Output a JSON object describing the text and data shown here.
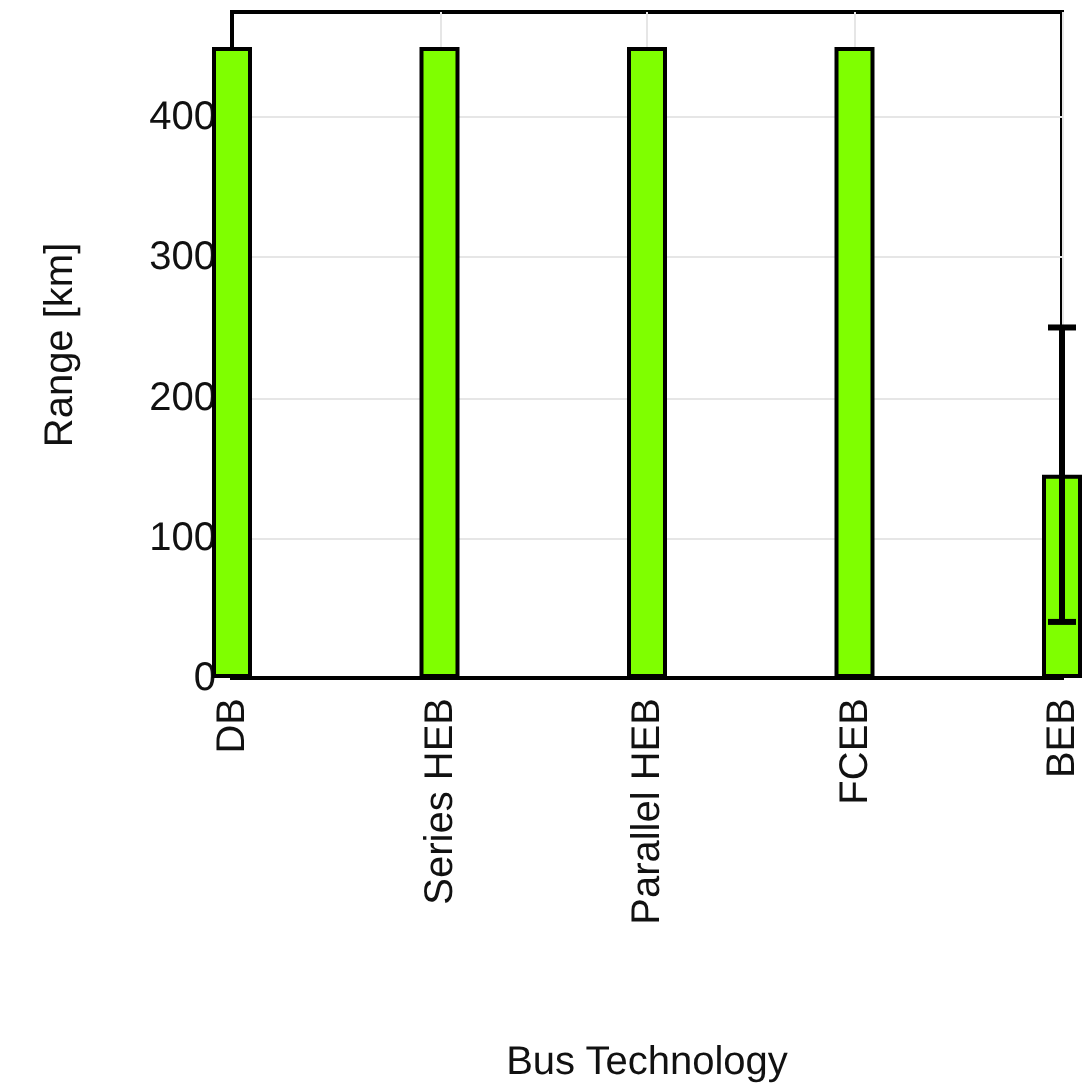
{
  "chart_data": {
    "type": "bar",
    "xlabel": "Bus Technology",
    "ylabel": "Range [km]",
    "categories": [
      "DB",
      "Series HEB",
      "Parallel HEB",
      "FCEB",
      "BEB"
    ],
    "values": [
      450,
      450,
      450,
      450,
      145
    ],
    "errors": [
      null,
      null,
      null,
      null,
      [
        40,
        250
      ]
    ],
    "color": "#7fff00",
    "ylim": [
      0,
      475
    ],
    "yticks": [
      0,
      100,
      200,
      300,
      400
    ],
    "grid": true
  }
}
